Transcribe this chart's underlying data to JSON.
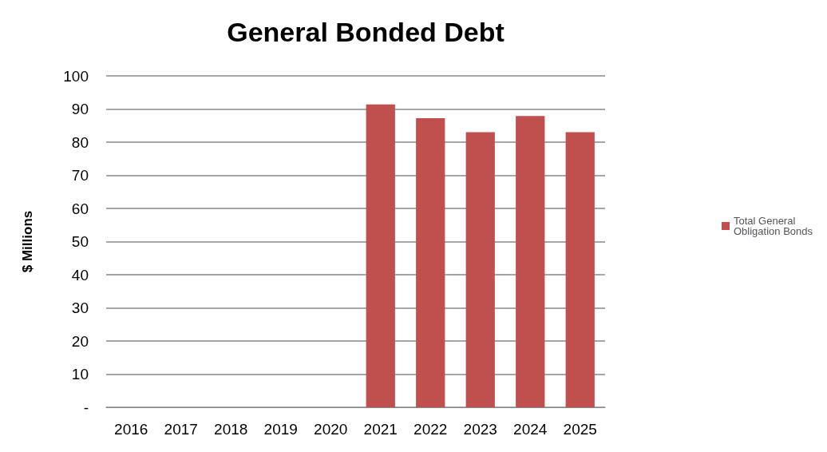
{
  "chart_data": {
    "type": "bar",
    "title": "General Bonded Debt",
    "ylabel": "$ Millions",
    "categories": [
      "2016",
      "2017",
      "2018",
      "2019",
      "2020",
      "2021",
      "2022",
      "2023",
      "2024",
      "2025"
    ],
    "series": [
      {
        "name": "Total General Obligation Bonds",
        "color": "#c0504d",
        "values": [
          null,
          null,
          null,
          null,
          null,
          91.4,
          87.2,
          83.0,
          87.9,
          83.0
        ]
      }
    ],
    "ylim": [
      0,
      100
    ],
    "yticks": [
      {
        "value": 0,
        "label": "-"
      },
      10,
      20,
      30,
      40,
      50,
      60,
      70,
      80,
      90,
      100
    ],
    "grid": "y",
    "legend": "right"
  }
}
